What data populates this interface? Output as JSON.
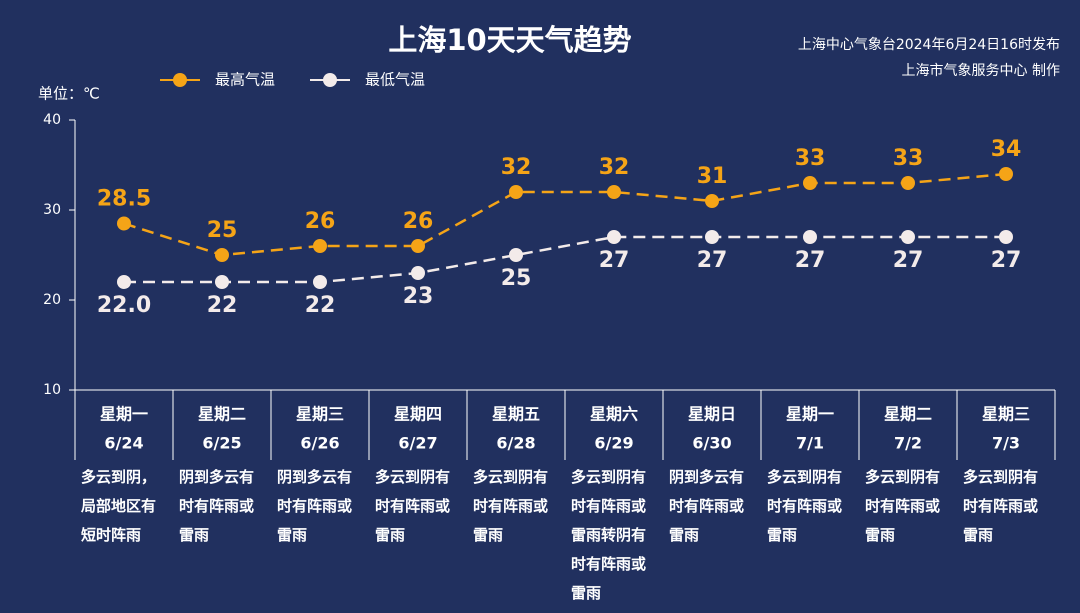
{
  "chart_data": {
    "type": "line",
    "title": "上海10天天气趋势",
    "notes": [
      "上海中心气象台2024年6月24日16时发布",
      "上海市气象服务中心 制作"
    ],
    "y_label": "单位：℃",
    "categories": [
      "6/24",
      "6/25",
      "6/26",
      "6/27",
      "6/28",
      "6/29",
      "6/30",
      "7/1",
      "7/2",
      "7/3"
    ],
    "weekdays": [
      "星期一",
      "星期二",
      "星期三",
      "星期四",
      "星期五",
      "星期六",
      "星期日",
      "星期一",
      "星期二",
      "星期三"
    ],
    "weather": [
      "多云到阴，局部地区有短时阵雨",
      "阴到多云有时有阵雨或雷雨",
      "阴到多云有时有阵雨或雷雨",
      "多云到阴有时有阵雨或雷雨",
      "多云到阴有时有阵雨或雷雨",
      "多云到阴有时有阵雨或雷雨转阴有时有阵雨或雷雨",
      "阴到多云有时有阵雨或雷雨",
      "多云到阴有时有阵雨或雷雨",
      "多云到阴有时有阵雨或雷雨",
      "多云到阴有时有阵雨或雷雨"
    ],
    "series": [
      {
        "name": "最高气温",
        "color": "#f5a417",
        "values": [
          28.5,
          25,
          26,
          26,
          32,
          32,
          31,
          33,
          33,
          34
        ],
        "label_position": "above"
      },
      {
        "name": "最低气温",
        "color": "#f3ebea",
        "values": [
          22,
          22,
          22,
          23,
          25,
          27,
          27,
          27,
          27,
          27
        ],
        "value_labels": [
          "22.0",
          "22",
          "22",
          "23",
          "25",
          "27",
          "27",
          "27",
          "27",
          "27"
        ],
        "label_position": "below"
      }
    ],
    "ylim": [
      10,
      40
    ],
    "yticks": [
      10,
      20,
      30,
      40
    ],
    "grid": false,
    "legend": "top-left"
  }
}
